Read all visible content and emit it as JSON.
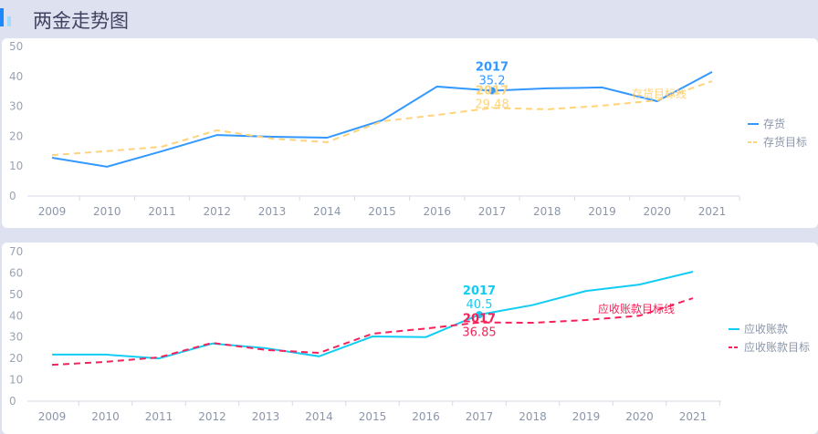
{
  "header": {
    "title": "两金走势图"
  },
  "colors": {
    "stock": "#3398ff",
    "stock_target": "#ffd37a",
    "ar": "#12cdf3",
    "ar_target": "#f5225a"
  },
  "chart_data": [
    {
      "type": "line",
      "categories": [
        "2009",
        "2010",
        "2011",
        "2012",
        "2013",
        "2014",
        "2015",
        "2016",
        "2017",
        "2018",
        "2019",
        "2020",
        "2021"
      ],
      "ylim": [
        0,
        50
      ],
      "yticks": [
        "0",
        "10",
        "20",
        "30",
        "40",
        "50"
      ],
      "series": [
        {
          "name": "存货",
          "values": [
            12.8,
            9.8,
            15,
            20.4,
            19.8,
            19.5,
            25.3,
            36.6,
            35.2,
            36,
            36.3,
            31.7,
            41.5
          ],
          "style": "solid"
        },
        {
          "name": "存货目标",
          "values": [
            13.7,
            15,
            16.5,
            22,
            19.2,
            18,
            25,
            27.1,
            29.48,
            29,
            30.2,
            32,
            38.4
          ],
          "style": "dashed"
        }
      ],
      "annotations": {
        "series0": {
          "year": "2017",
          "value": "35.2"
        },
        "series1": {
          "year": "2017",
          "value": "29.48"
        },
        "target_line_label": "存货目标线"
      },
      "legend": "right"
    },
    {
      "type": "line",
      "categories": [
        "2009",
        "2010",
        "2011",
        "2012",
        "2013",
        "2014",
        "2015",
        "2016",
        "2017",
        "2018",
        "2019",
        "2020",
        "2021"
      ],
      "ylim": [
        0,
        70
      ],
      "yticks": [
        "0",
        "10",
        "20",
        "30",
        "40",
        "50",
        "60",
        "70"
      ],
      "series": [
        {
          "name": "应收账款",
          "values": [
            21.8,
            21.8,
            20,
            27,
            24.8,
            21,
            30.3,
            30,
            40.5,
            45,
            51.6,
            54.6,
            60.6
          ],
          "style": "solid"
        },
        {
          "name": "应收账款目标",
          "values": [
            17,
            18.4,
            20.5,
            27.3,
            24,
            22.6,
            31.6,
            34,
            36.85,
            36.7,
            38,
            40,
            48.2
          ],
          "style": "dashed"
        }
      ],
      "annotations": {
        "series0": {
          "year": "2017",
          "value": "40.5"
        },
        "series1": {
          "year": "2017",
          "value": "36.85"
        },
        "target_line_label": "应收账款目标线"
      },
      "legend": "right"
    }
  ]
}
